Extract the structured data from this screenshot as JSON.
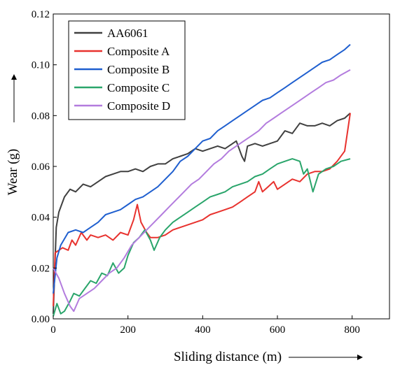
{
  "chart_data": {
    "type": "line",
    "xlabel": "Sliding distance (m)",
    "ylabel": "Wear (g)",
    "xlim": [
      0,
      900
    ],
    "ylim": [
      0,
      0.12
    ],
    "xticks": [
      0,
      200,
      400,
      600,
      800
    ],
    "xtick_labels": [
      "0",
      "200",
      "400",
      "600",
      "800"
    ],
    "yticks": [
      0,
      0.02,
      0.04,
      0.06,
      0.08,
      0.1,
      0.12
    ],
    "ytick_labels": [
      "0.00",
      "0.02",
      "0.04",
      "0.06",
      "0.08",
      "0.10",
      "0.12"
    ],
    "grid": false,
    "legend_position": "top-left",
    "series": [
      {
        "name": "AA6061",
        "color": "#404040",
        "points": [
          [
            0,
            0.002
          ],
          [
            8,
            0.036
          ],
          [
            15,
            0.042
          ],
          [
            30,
            0.048
          ],
          [
            45,
            0.051
          ],
          [
            60,
            0.05
          ],
          [
            80,
            0.053
          ],
          [
            100,
            0.052
          ],
          [
            120,
            0.054
          ],
          [
            140,
            0.056
          ],
          [
            160,
            0.057
          ],
          [
            180,
            0.058
          ],
          [
            200,
            0.058
          ],
          [
            220,
            0.059
          ],
          [
            240,
            0.058
          ],
          [
            260,
            0.06
          ],
          [
            280,
            0.061
          ],
          [
            300,
            0.061
          ],
          [
            320,
            0.063
          ],
          [
            340,
            0.064
          ],
          [
            360,
            0.065
          ],
          [
            380,
            0.067
          ],
          [
            400,
            0.066
          ],
          [
            420,
            0.067
          ],
          [
            440,
            0.068
          ],
          [
            460,
            0.067
          ],
          [
            480,
            0.069
          ],
          [
            490,
            0.07
          ],
          [
            505,
            0.064
          ],
          [
            512,
            0.062
          ],
          [
            520,
            0.068
          ],
          [
            540,
            0.069
          ],
          [
            560,
            0.068
          ],
          [
            580,
            0.069
          ],
          [
            600,
            0.07
          ],
          [
            620,
            0.074
          ],
          [
            640,
            0.073
          ],
          [
            660,
            0.077
          ],
          [
            680,
            0.076
          ],
          [
            700,
            0.076
          ],
          [
            720,
            0.077
          ],
          [
            740,
            0.076
          ],
          [
            760,
            0.078
          ],
          [
            780,
            0.079
          ],
          [
            795,
            0.081
          ]
        ]
      },
      {
        "name": "Composite A",
        "color": "#e8322e",
        "points": [
          [
            0,
            0.005
          ],
          [
            5,
            0.026
          ],
          [
            15,
            0.027
          ],
          [
            25,
            0.028
          ],
          [
            40,
            0.027
          ],
          [
            50,
            0.031
          ],
          [
            60,
            0.029
          ],
          [
            75,
            0.034
          ],
          [
            90,
            0.031
          ],
          [
            100,
            0.033
          ],
          [
            120,
            0.032
          ],
          [
            140,
            0.033
          ],
          [
            160,
            0.031
          ],
          [
            180,
            0.034
          ],
          [
            200,
            0.033
          ],
          [
            215,
            0.039
          ],
          [
            225,
            0.045
          ],
          [
            235,
            0.038
          ],
          [
            250,
            0.034
          ],
          [
            260,
            0.032
          ],
          [
            280,
            0.032
          ],
          [
            300,
            0.033
          ],
          [
            320,
            0.035
          ],
          [
            340,
            0.036
          ],
          [
            360,
            0.037
          ],
          [
            380,
            0.038
          ],
          [
            400,
            0.039
          ],
          [
            420,
            0.041
          ],
          [
            440,
            0.042
          ],
          [
            460,
            0.043
          ],
          [
            480,
            0.044
          ],
          [
            500,
            0.046
          ],
          [
            520,
            0.048
          ],
          [
            540,
            0.05
          ],
          [
            550,
            0.054
          ],
          [
            560,
            0.05
          ],
          [
            575,
            0.052
          ],
          [
            590,
            0.054
          ],
          [
            600,
            0.051
          ],
          [
            620,
            0.053
          ],
          [
            640,
            0.055
          ],
          [
            660,
            0.054
          ],
          [
            680,
            0.057
          ],
          [
            700,
            0.058
          ],
          [
            720,
            0.058
          ],
          [
            740,
            0.059
          ],
          [
            760,
            0.062
          ],
          [
            780,
            0.066
          ],
          [
            795,
            0.081
          ]
        ]
      },
      {
        "name": "Composite B",
        "color": "#1f5fcf",
        "points": [
          [
            0,
            0.01
          ],
          [
            10,
            0.024
          ],
          [
            20,
            0.029
          ],
          [
            40,
            0.034
          ],
          [
            60,
            0.035
          ],
          [
            80,
            0.034
          ],
          [
            100,
            0.036
          ],
          [
            120,
            0.038
          ],
          [
            140,
            0.041
          ],
          [
            160,
            0.042
          ],
          [
            180,
            0.043
          ],
          [
            200,
            0.045
          ],
          [
            220,
            0.047
          ],
          [
            240,
            0.048
          ],
          [
            260,
            0.05
          ],
          [
            280,
            0.052
          ],
          [
            300,
            0.055
          ],
          [
            320,
            0.058
          ],
          [
            340,
            0.062
          ],
          [
            360,
            0.064
          ],
          [
            380,
            0.067
          ],
          [
            400,
            0.07
          ],
          [
            420,
            0.071
          ],
          [
            440,
            0.074
          ],
          [
            460,
            0.076
          ],
          [
            480,
            0.078
          ],
          [
            500,
            0.08
          ],
          [
            520,
            0.082
          ],
          [
            540,
            0.084
          ],
          [
            560,
            0.086
          ],
          [
            580,
            0.087
          ],
          [
            600,
            0.089
          ],
          [
            620,
            0.091
          ],
          [
            640,
            0.093
          ],
          [
            660,
            0.095
          ],
          [
            680,
            0.097
          ],
          [
            700,
            0.099
          ],
          [
            720,
            0.101
          ],
          [
            740,
            0.102
          ],
          [
            760,
            0.104
          ],
          [
            780,
            0.106
          ],
          [
            795,
            0.108
          ]
        ]
      },
      {
        "name": "Composite C",
        "color": "#2aa56b",
        "points": [
          [
            0,
            0.001
          ],
          [
            10,
            0.006
          ],
          [
            20,
            0.002
          ],
          [
            30,
            0.003
          ],
          [
            45,
            0.007
          ],
          [
            55,
            0.01
          ],
          [
            70,
            0.009
          ],
          [
            85,
            0.012
          ],
          [
            100,
            0.015
          ],
          [
            115,
            0.014
          ],
          [
            130,
            0.018
          ],
          [
            145,
            0.017
          ],
          [
            160,
            0.022
          ],
          [
            175,
            0.018
          ],
          [
            190,
            0.02
          ],
          [
            200,
            0.025
          ],
          [
            215,
            0.03
          ],
          [
            230,
            0.032
          ],
          [
            245,
            0.035
          ],
          [
            260,
            0.031
          ],
          [
            270,
            0.027
          ],
          [
            285,
            0.032
          ],
          [
            300,
            0.035
          ],
          [
            320,
            0.038
          ],
          [
            340,
            0.04
          ],
          [
            360,
            0.042
          ],
          [
            380,
            0.044
          ],
          [
            400,
            0.046
          ],
          [
            420,
            0.048
          ],
          [
            440,
            0.049
          ],
          [
            460,
            0.05
          ],
          [
            480,
            0.052
          ],
          [
            500,
            0.053
          ],
          [
            520,
            0.054
          ],
          [
            540,
            0.056
          ],
          [
            560,
            0.057
          ],
          [
            580,
            0.059
          ],
          [
            600,
            0.061
          ],
          [
            620,
            0.062
          ],
          [
            640,
            0.063
          ],
          [
            660,
            0.062
          ],
          [
            670,
            0.057
          ],
          [
            680,
            0.059
          ],
          [
            695,
            0.05
          ],
          [
            710,
            0.057
          ],
          [
            730,
            0.059
          ],
          [
            750,
            0.06
          ],
          [
            770,
            0.062
          ],
          [
            795,
            0.063
          ]
        ]
      },
      {
        "name": "Composite D",
        "color": "#b37cde",
        "points": [
          [
            0,
            0.02
          ],
          [
            15,
            0.016
          ],
          [
            30,
            0.01
          ],
          [
            45,
            0.005
          ],
          [
            55,
            0.003
          ],
          [
            70,
            0.008
          ],
          [
            90,
            0.01
          ],
          [
            110,
            0.012
          ],
          [
            130,
            0.015
          ],
          [
            150,
            0.018
          ],
          [
            170,
            0.02
          ],
          [
            190,
            0.024
          ],
          [
            210,
            0.029
          ],
          [
            230,
            0.032
          ],
          [
            250,
            0.035
          ],
          [
            270,
            0.038
          ],
          [
            290,
            0.041
          ],
          [
            310,
            0.044
          ],
          [
            330,
            0.047
          ],
          [
            350,
            0.05
          ],
          [
            370,
            0.053
          ],
          [
            390,
            0.055
          ],
          [
            410,
            0.058
          ],
          [
            430,
            0.061
          ],
          [
            450,
            0.063
          ],
          [
            470,
            0.066
          ],
          [
            490,
            0.068
          ],
          [
            510,
            0.07
          ],
          [
            530,
            0.072
          ],
          [
            550,
            0.074
          ],
          [
            570,
            0.077
          ],
          [
            590,
            0.079
          ],
          [
            610,
            0.081
          ],
          [
            630,
            0.083
          ],
          [
            650,
            0.085
          ],
          [
            670,
            0.087
          ],
          [
            690,
            0.089
          ],
          [
            710,
            0.091
          ],
          [
            730,
            0.093
          ],
          [
            750,
            0.094
          ],
          [
            770,
            0.096
          ],
          [
            795,
            0.098
          ]
        ]
      }
    ]
  }
}
